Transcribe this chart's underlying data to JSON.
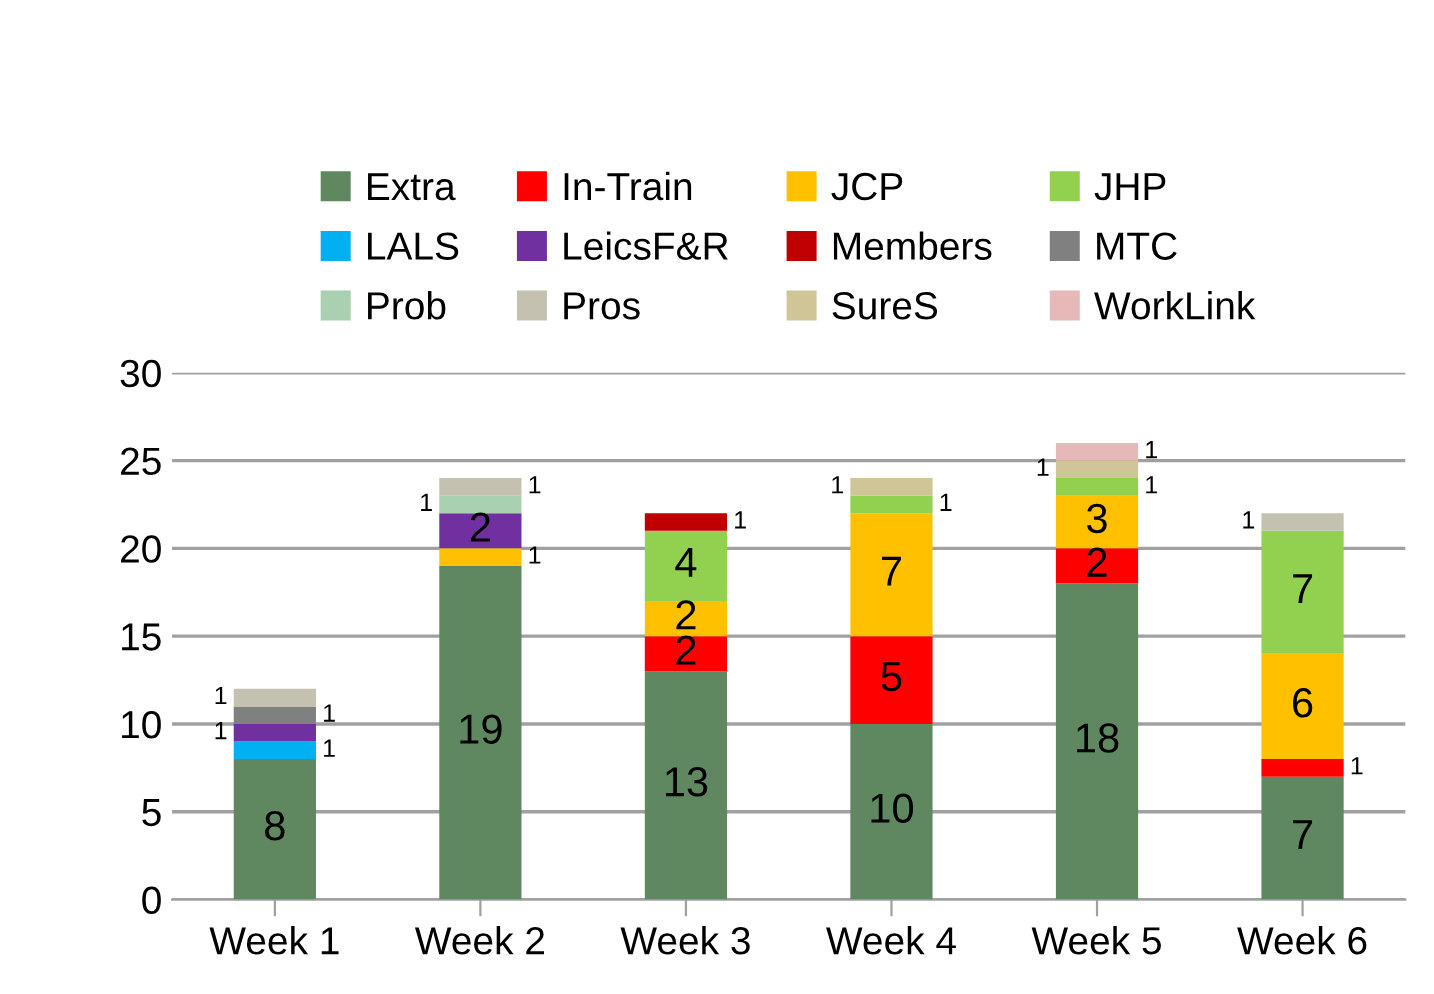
{
  "chart_data": {
    "type": "bar",
    "stacked": true,
    "categories": [
      "Week 1",
      "Week 2",
      "Week 3",
      "Week 4",
      "Week 5",
      "Week 6"
    ],
    "series": [
      {
        "name": "Extra",
        "color": "#5f8760",
        "values": [
          8,
          19,
          13,
          10,
          18,
          7
        ]
      },
      {
        "name": "In-Train",
        "color": "#ff0000",
        "values": [
          null,
          null,
          2,
          5,
          2,
          1
        ]
      },
      {
        "name": "JCP",
        "color": "#ffc000",
        "values": [
          null,
          1,
          2,
          7,
          3,
          6
        ]
      },
      {
        "name": "JHP",
        "color": "#92d050",
        "values": [
          null,
          null,
          4,
          1,
          1,
          7
        ]
      },
      {
        "name": "LALS",
        "color": "#00b0f0",
        "values": [
          1,
          null,
          null,
          null,
          null,
          null
        ]
      },
      {
        "name": "LeicsF&R",
        "color": "#7030a0",
        "values": [
          1,
          2,
          null,
          null,
          null,
          null
        ]
      },
      {
        "name": "Members",
        "color": "#c00000",
        "values": [
          null,
          null,
          1,
          null,
          null,
          null
        ]
      },
      {
        "name": "MTC",
        "color": "#808080",
        "values": [
          1,
          null,
          null,
          null,
          null,
          null
        ]
      },
      {
        "name": "Prob",
        "color": "#a9d0b0",
        "values": [
          null,
          1,
          null,
          null,
          null,
          null
        ]
      },
      {
        "name": "Pros",
        "color": "#c4c1b0",
        "values": [
          1,
          1,
          null,
          null,
          null,
          1
        ]
      },
      {
        "name": "SureS",
        "color": "#cfc596",
        "values": [
          null,
          null,
          null,
          1,
          1,
          null
        ]
      },
      {
        "name": "WorkLink",
        "color": "#e6b8b7",
        "values": [
          null,
          null,
          null,
          null,
          1,
          null
        ]
      }
    ],
    "ylim": [
      0,
      30
    ],
    "yticks": [
      0,
      5,
      10,
      15,
      20,
      25,
      30
    ],
    "grid": "y",
    "legend": "top",
    "data_labels": true
  }
}
